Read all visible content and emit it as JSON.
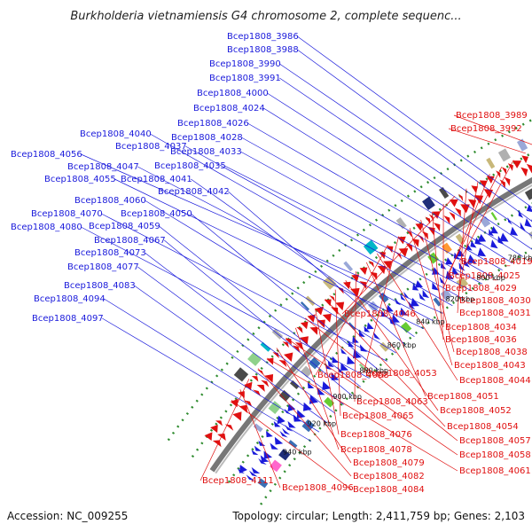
{
  "title": "Burkholderia vietnamiensis G4 chromosome 2, complete sequenc...",
  "accession": "Accession: NC_009255",
  "topology": "Topology: circular; Length: 2,411,759 bp; Genes: 2,103",
  "colors": {
    "forward": "#1a1adb",
    "reverse": "#e01010",
    "backbone": "#777777",
    "gc_ring": "#2e8b2e"
  },
  "scale_labels": [
    "760 kbp",
    "780 kbp",
    "800 kbp",
    "820 kbp",
    "840 kbp",
    "860 kbp",
    "880 kbp",
    "900 kbp",
    "920 kbp",
    "940 kbp"
  ],
  "forward_labels": [
    "Bcep1808_3986",
    "Bcep1808_3988",
    "Bcep1808_3990",
    "Bcep1808_3991",
    "Bcep1808_4000",
    "Bcep1808_4024",
    "Bcep1808_4026",
    "Bcep1808_4028",
    "Bcep1808_4033",
    "Bcep1808_4035",
    "Bcep1808_4037",
    "Bcep1808_4040",
    "Bcep1808_4056",
    "Bcep1808_4047",
    "Bcep1808_4055",
    "Bcep1808_4041",
    "Bcep1808_4042",
    "Bcep1808_4060",
    "Bcep1808_4070",
    "Bcep1808_4050",
    "Bcep1808_4080",
    "Bcep1808_4059",
    "Bcep1808_4067",
    "Bcep1808_4073",
    "Bcep1808_4077",
    "Bcep1808_4083",
    "Bcep1808_4094",
    "Bcep1808_4097"
  ],
  "reverse_labels": [
    "Bcep1808_3989",
    "Bcep1808_3992",
    "Bcep1808_4019",
    "Bcep1808_4025",
    "Bcep1808_4029",
    "Bcep1808_4030",
    "Bcep1808_4031",
    "Bcep1808_4046",
    "Bcep1808_4034",
    "Bcep1808_4036",
    "Bcep1808_4038",
    "Bcep1808_4043",
    "Bcep1808_4053",
    "Bcep1808_4068",
    "Bcep1808_4044",
    "Bcep1808_4051",
    "Bcep1808_4063",
    "Bcep1808_4052",
    "Bcep1808_4065",
    "Bcep1808_4054",
    "Bcep1808_4076",
    "Bcep1808_4057",
    "Bcep1808_4078",
    "Bcep1808_4058",
    "Bcep1808_4079",
    "Bcep1808_4061",
    "Bcep1808_4082",
    "Bcep1808_4111",
    "Bcep1808_4096",
    "Bcep1808_4084"
  ]
}
